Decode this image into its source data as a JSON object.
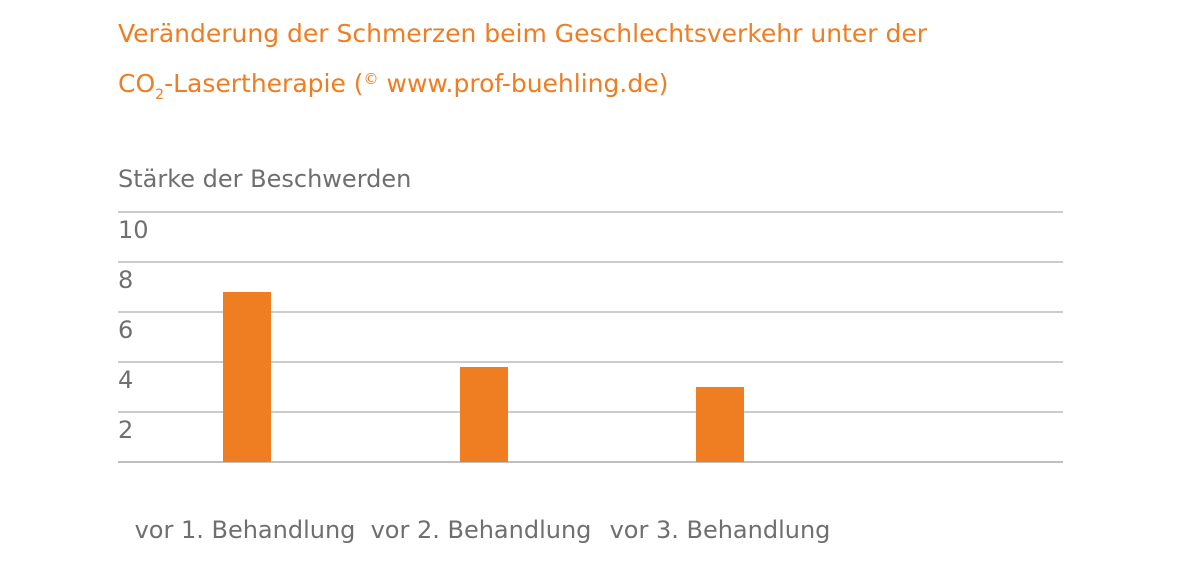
{
  "title": {
    "line1": "Veränderung der Schmerzen beim Geschlechtsverkehr unter der",
    "co": "CO",
    "sub": "2",
    "after_sub": "-Lasertherapie (",
    "copyright": "©",
    "after_copyright": " www.prof-buehling.de)"
  },
  "colors": {
    "accent": "#ef7d22",
    "text": "#6f6f6f",
    "grid": "#9a9a9a"
  },
  "chart_data": {
    "type": "bar",
    "ylabel": "Stärke der Beschwerden",
    "xlabel": "",
    "categories": [
      "vor 1. Behandlung",
      "vor 2. Behandlung",
      "vor 3. Behandlung"
    ],
    "values": [
      6.8,
      3.8,
      3.0
    ],
    "ylim": [
      0,
      10
    ],
    "yticks": [
      10,
      8,
      6,
      4,
      2
    ],
    "grid": true,
    "bar_color": "#ef7d22"
  }
}
